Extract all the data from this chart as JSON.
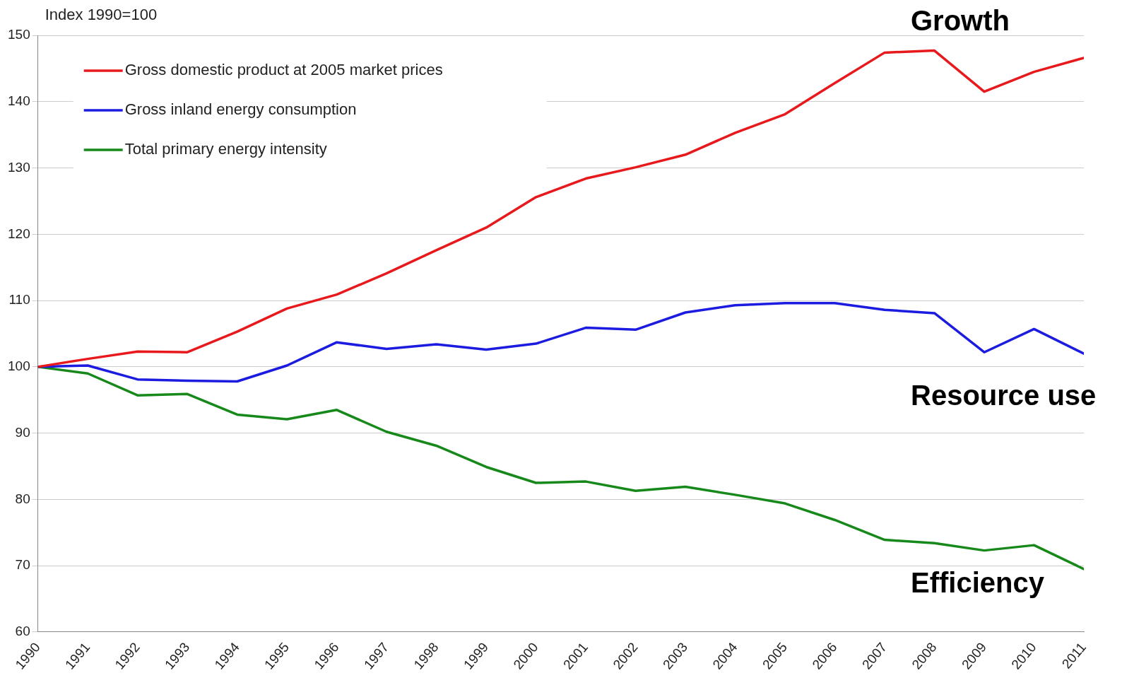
{
  "chart_data": {
    "type": "line",
    "ylabel": "Index 1990=100",
    "x": [
      1990,
      1991,
      1992,
      1993,
      1994,
      1995,
      1996,
      1997,
      1998,
      1999,
      2000,
      2001,
      2002,
      2003,
      2004,
      2005,
      2006,
      2007,
      2008,
      2009,
      2010,
      2011
    ],
    "xlim": [
      1990,
      2011
    ],
    "xticks": [
      1990,
      1991,
      1992,
      1993,
      1994,
      1995,
      1996,
      1997,
      1998,
      1999,
      2000,
      2001,
      2002,
      2003,
      2004,
      2005,
      2006,
      2007,
      2008,
      2009,
      2010,
      2011
    ],
    "ylim": [
      60,
      150
    ],
    "yticks": [
      60,
      70,
      80,
      90,
      100,
      110,
      120,
      130,
      140,
      150
    ],
    "grid": "y",
    "legend": "top left",
    "marker": "none",
    "line_style": "solid",
    "series": [
      {
        "name": "Gross domestic product at 2005 market prices",
        "color": "#e8191c",
        "values": [
          100,
          101.2,
          102.3,
          102.2,
          105.3,
          108.8,
          110.9,
          114.1,
          117.6,
          121,
          125.6,
          128.4,
          130.1,
          132,
          135.3,
          138.1,
          142.8,
          147.4,
          147.7,
          141.5,
          144.5,
          146.6
        ]
      },
      {
        "name": "Gross inland energy consumption",
        "color": "#1c1ce0",
        "values": [
          100,
          100.2,
          98.1,
          97.9,
          97.8,
          100.2,
          103.7,
          102.7,
          103.4,
          102.6,
          103.5,
          105.9,
          105.6,
          108.2,
          109.3,
          109.6,
          109.6,
          108.6,
          108.1,
          102.2,
          105.7,
          102
        ]
      },
      {
        "name": "Total primary energy intensity",
        "color": "#17891a",
        "values": [
          100,
          99,
          95.7,
          95.9,
          92.8,
          92.1,
          93.5,
          90.2,
          88.1,
          84.9,
          82.5,
          82.7,
          81.3,
          81.9,
          80.7,
          79.4,
          76.9,
          73.9,
          73.4,
          72.3,
          73.1,
          69.5
        ]
      }
    ],
    "annotations": [
      "Growth",
      "Resource use",
      "Efficiency"
    ]
  }
}
